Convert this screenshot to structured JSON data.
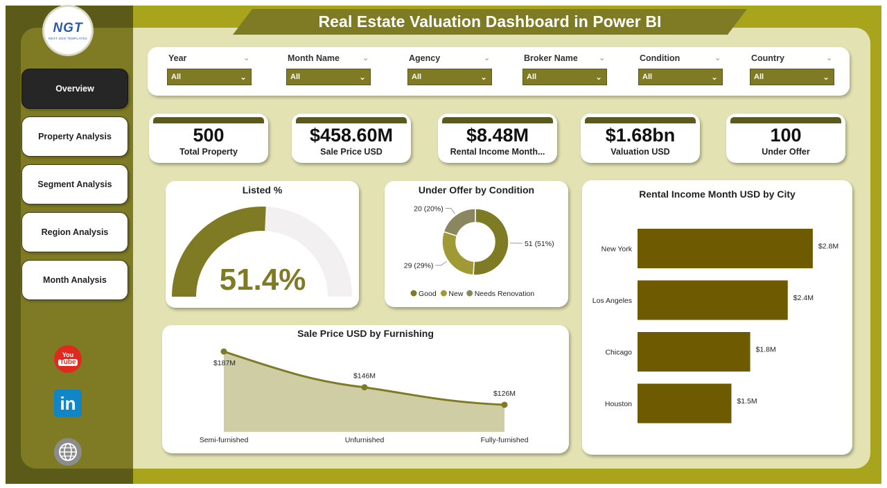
{
  "title": "Real Estate Valuation Dashboard in Power BI",
  "logo": {
    "text": "NGT",
    "subtitle": "NEXT GEN TEMPLATES"
  },
  "nav": [
    {
      "label": "Overview",
      "active": true
    },
    {
      "label": "Property Analysis",
      "active": false
    },
    {
      "label": "Segment Analysis",
      "active": false
    },
    {
      "label": "Region Analysis",
      "active": false
    },
    {
      "label": "Month Analysis",
      "active": false
    }
  ],
  "social": {
    "youtube_top": "You",
    "youtube_bottom": "Tube",
    "linkedin": "in",
    "web_icon": "globe-icon"
  },
  "filters": [
    {
      "label": "Year",
      "value": "All"
    },
    {
      "label": "Month Name",
      "value": "All"
    },
    {
      "label": "Agency",
      "value": "All"
    },
    {
      "label": "Broker Name",
      "value": "All"
    },
    {
      "label": "Condition",
      "value": "All"
    },
    {
      "label": "Country",
      "value": "All"
    }
  ],
  "kpis": [
    {
      "value": "500",
      "label": "Total Property"
    },
    {
      "value": "$458.60M",
      "label": "Sale Price USD"
    },
    {
      "value": "$8.48M",
      "label": "Rental Income Month..."
    },
    {
      "value": "$1.68bn",
      "label": "Valuation USD"
    },
    {
      "value": "100",
      "label": "Under Offer"
    }
  ],
  "colors": {
    "olive_dark": "#5b5a18",
    "olive": "#7e7b24",
    "olive_mid": "#a09a36",
    "olive_light": "#8a8660",
    "bar": "#6e5a00",
    "panel": "#e3e2b3"
  },
  "chart_data": [
    {
      "type": "gauge",
      "title": "Listed %",
      "value": 51.4,
      "value_label": "51.4%",
      "range": [
        0,
        100
      ]
    },
    {
      "type": "pie",
      "title": "Under Offer by Condition",
      "slices": [
        {
          "name": "Good",
          "value": 51,
          "label": "51 (51%)",
          "color": "#7e7b24"
        },
        {
          "name": "New",
          "value": 29,
          "label": "29 (29%)",
          "color": "#a09a36"
        },
        {
          "name": "Needs Renovation",
          "value": 20,
          "label": "20 (20%)",
          "color": "#8a8660"
        }
      ],
      "legend_position": "bottom"
    },
    {
      "type": "bar",
      "orientation": "horizontal",
      "title": "Rental Income Month USD by City",
      "categories": [
        "New York",
        "Los Angeles",
        "Chicago",
        "Houston"
      ],
      "values": [
        2.8,
        2.4,
        1.8,
        1.5
      ],
      "value_labels": [
        "$2.8M",
        "$2.4M",
        "$1.8M",
        "$1.5M"
      ],
      "xlim": [
        0,
        3.1
      ]
    },
    {
      "type": "area",
      "title": "Sale Price USD by Furnishing",
      "categories": [
        "Semi-furnished",
        "Unfurnished",
        "Fully-furnished"
      ],
      "values": [
        187,
        146,
        126
      ],
      "value_labels": [
        "$187M",
        "$146M",
        "$126M"
      ],
      "ylim": [
        95,
        195
      ]
    }
  ]
}
